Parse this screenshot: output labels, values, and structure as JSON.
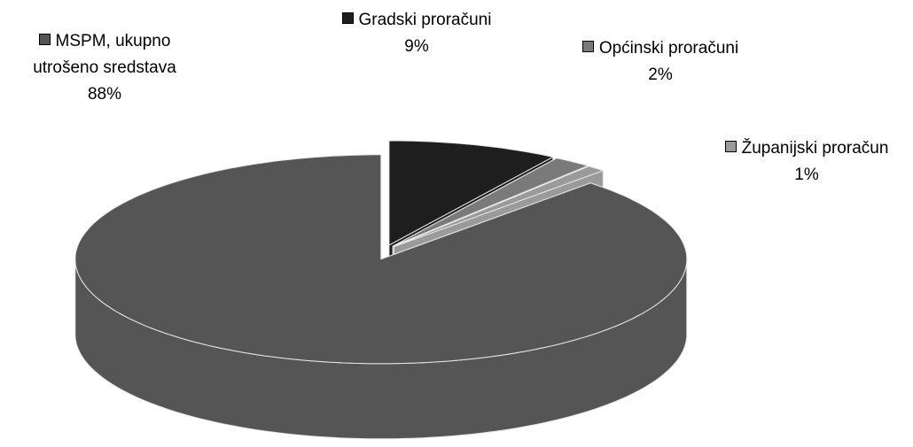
{
  "chart_data": {
    "type": "pie3d",
    "categories": [
      "MSPM, ukupno utrošeno sredstava",
      "Gradski proračuni",
      "Općinski proračuni",
      "Županijski proračun"
    ],
    "values": [
      88,
      9,
      2,
      1
    ],
    "value_labels": [
      "88%",
      "9%",
      "2%",
      "1%"
    ],
    "colors": [
      "#555555",
      "#1e1e1e",
      "#7a7a7a",
      "#9a9a9a"
    ]
  }
}
